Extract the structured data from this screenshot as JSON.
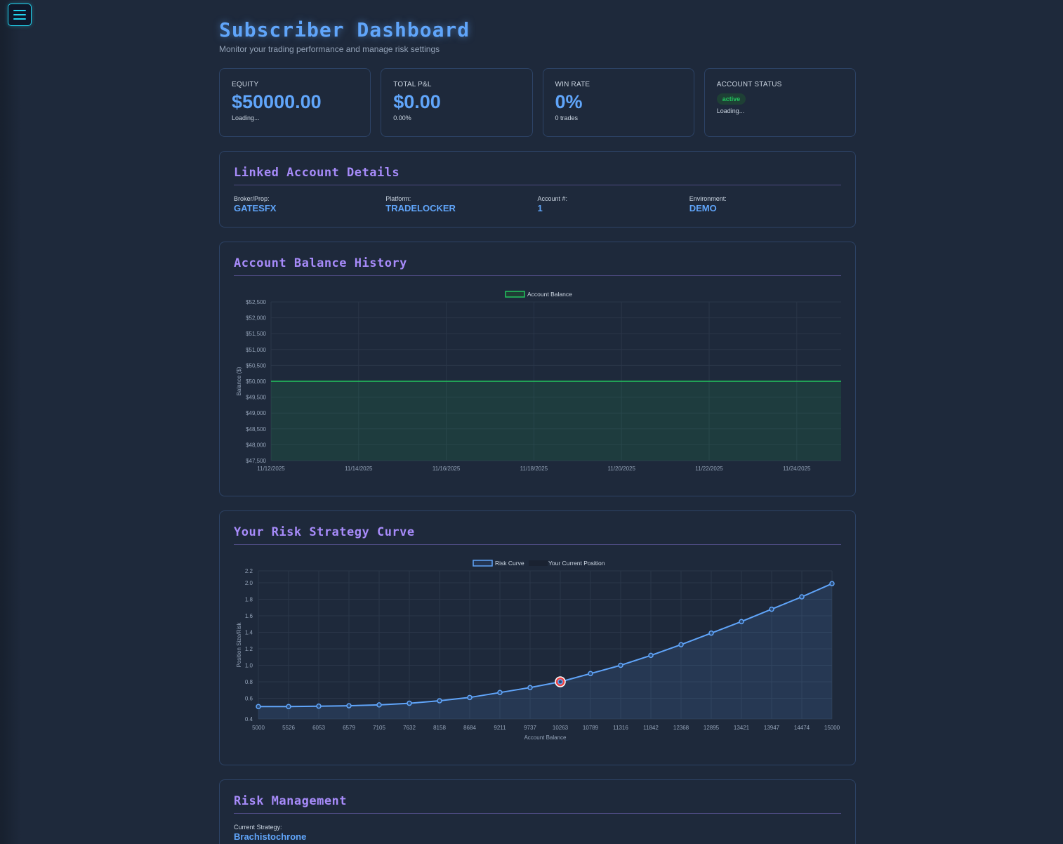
{
  "menu": {
    "icon": "hamburger-icon",
    "color": "#22d3ee"
  },
  "header": {
    "title": "Subscriber Dashboard",
    "subtitle": "Monitor your trading performance and manage risk settings"
  },
  "stats": [
    {
      "label": "EQUITY",
      "value": "$50000.00",
      "sub": "Loading..."
    },
    {
      "label": "TOTAL P&L",
      "value": "$0.00",
      "sub": "0.00%"
    },
    {
      "label": "WIN RATE",
      "value": "0%",
      "sub": "0 trades"
    },
    {
      "label": "ACCOUNT STATUS",
      "badge": "active",
      "sub": "Loading..."
    }
  ],
  "linked_account": {
    "title": "Linked Account Details",
    "fields": [
      {
        "label": "Broker/Prop:",
        "value": "GATESFX"
      },
      {
        "label": "Platform:",
        "value": "TRADELOCKER"
      },
      {
        "label": "Account #:",
        "value": "1"
      },
      {
        "label": "Environment:",
        "value": "DEMO"
      }
    ]
  },
  "balance_history": {
    "title": "Account Balance History"
  },
  "risk_curve": {
    "title": "Your Risk Strategy Curve"
  },
  "risk_management": {
    "title": "Risk Management",
    "strategy_label": "Current Strategy:",
    "strategy_value": "Brachistochrone"
  },
  "colors": {
    "accent_blue": "#60a5fa",
    "accent_purple": "#a78bfa",
    "positive_green": "#22c55e",
    "marker_red": "#ef4444"
  },
  "chart_data": [
    {
      "type": "area",
      "title": "Account Balance History",
      "xlabel": "",
      "ylabel": "Balance ($)",
      "legend": [
        "Account Balance"
      ],
      "legend_position": "top",
      "grid": true,
      "ylim": [
        47500,
        52500
      ],
      "yticks": [
        "$52,500",
        "$52,000",
        "$51,500",
        "$51,000",
        "$50,500",
        "$50,000",
        "$49,500",
        "$49,000",
        "$48,500",
        "$48,000",
        "$47,500"
      ],
      "xticks": [
        "11/12/2025",
        "11/14/2025",
        "11/16/2025",
        "11/18/2025",
        "11/20/2025",
        "11/22/2025",
        "11/24/2025"
      ],
      "series": [
        {
          "name": "Account Balance",
          "color": "#22c55e",
          "x": [
            "11/12/2025",
            "11/25/2025"
          ],
          "values": [
            50000,
            50000
          ]
        }
      ]
    },
    {
      "type": "line",
      "title": "Your Risk Strategy Curve",
      "xlabel": "Account Balance",
      "ylabel": "Position Size/Risk",
      "legend": [
        "Risk Curve",
        "Your Current Position"
      ],
      "legend_position": "top",
      "grid": true,
      "ylim": [
        0.4,
        2.2
      ],
      "yticks": [
        "2.2",
        "2.0",
        "1.8",
        "1.6",
        "1.4",
        "1.2",
        "1.0",
        "0.8",
        "0.6",
        "0.4"
      ],
      "categories": [
        "5000",
        "5526",
        "6053",
        "6579",
        "7105",
        "7632",
        "8158",
        "8684",
        "9211",
        "9737",
        "10263",
        "10789",
        "11316",
        "11842",
        "12368",
        "12895",
        "13421",
        "13947",
        "14474",
        "15000"
      ],
      "series": [
        {
          "name": "Risk Curve",
          "color": "#60a5fa",
          "values": [
            0.5,
            0.5,
            0.505,
            0.51,
            0.52,
            0.54,
            0.57,
            0.61,
            0.67,
            0.73,
            0.8,
            0.9,
            1.0,
            1.12,
            1.25,
            1.39,
            1.53,
            1.68,
            1.83,
            1.99
          ]
        },
        {
          "name": "Your Current Position",
          "color": "#ef4444",
          "x": "10263",
          "values": [
            0.8
          ]
        }
      ]
    }
  ]
}
